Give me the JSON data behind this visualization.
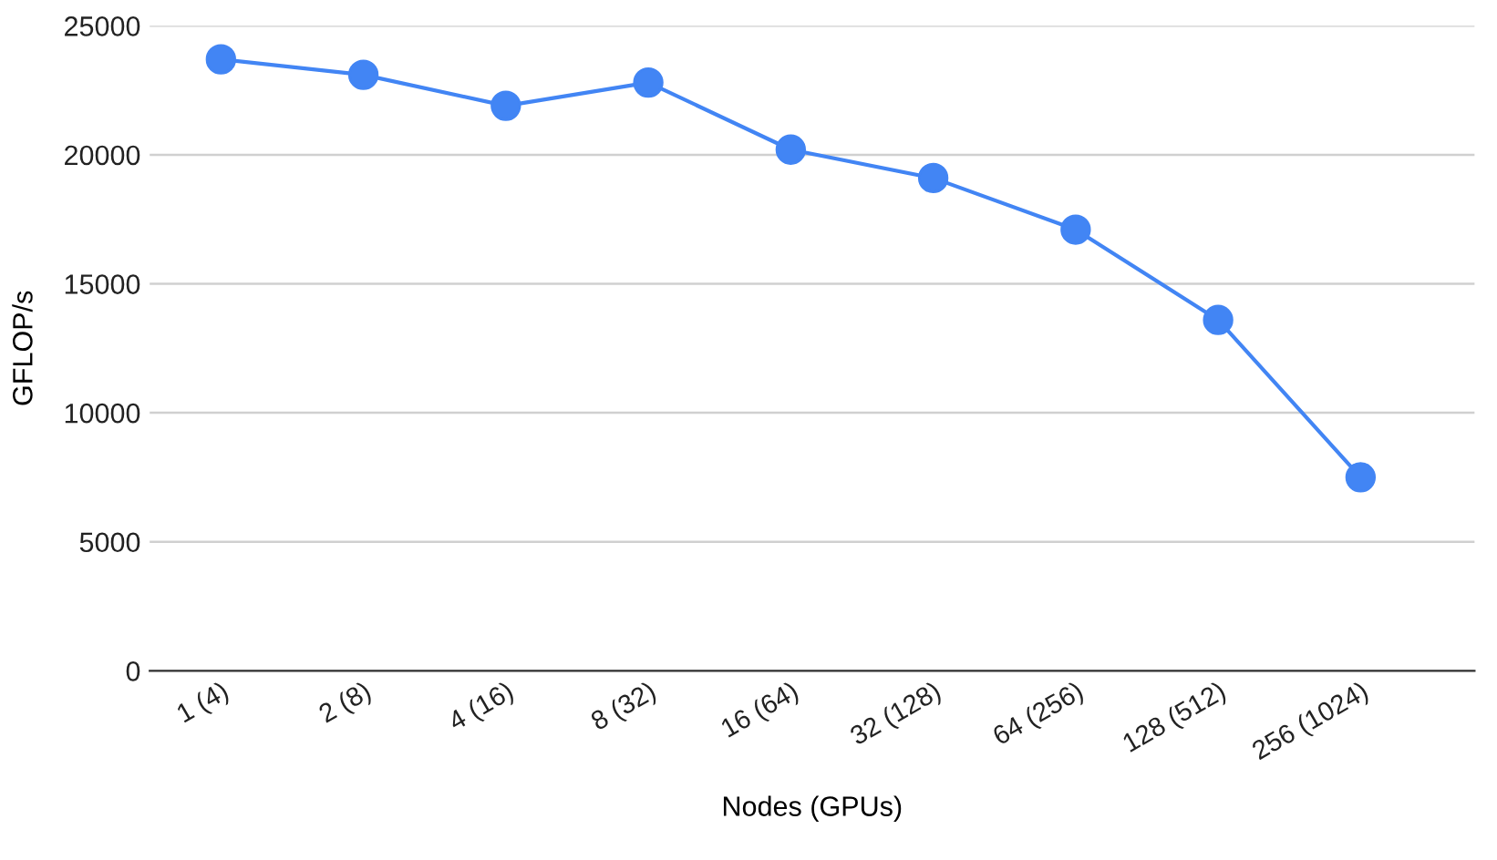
{
  "chart_data": {
    "type": "line",
    "xlabel": "Nodes (GPUs)",
    "ylabel": "GFLOP/s",
    "categories": [
      "1 (4)",
      "2 (8)",
      "4 (16)",
      "8 (32)",
      "16 (64)",
      "32 (128)",
      "64 (256)",
      "128 (512)",
      "256 (1024)"
    ],
    "series": [
      {
        "color": "#4285f4",
        "values": [
          23700,
          23100,
          21900,
          22800,
          20200,
          19100,
          17100,
          13600,
          7500
        ]
      }
    ],
    "ylim": [
      0,
      25000
    ],
    "yticks": [
      0,
      5000,
      10000,
      15000,
      20000,
      25000
    ],
    "grid": "y",
    "marker": "circle",
    "line_style": "solid"
  }
}
